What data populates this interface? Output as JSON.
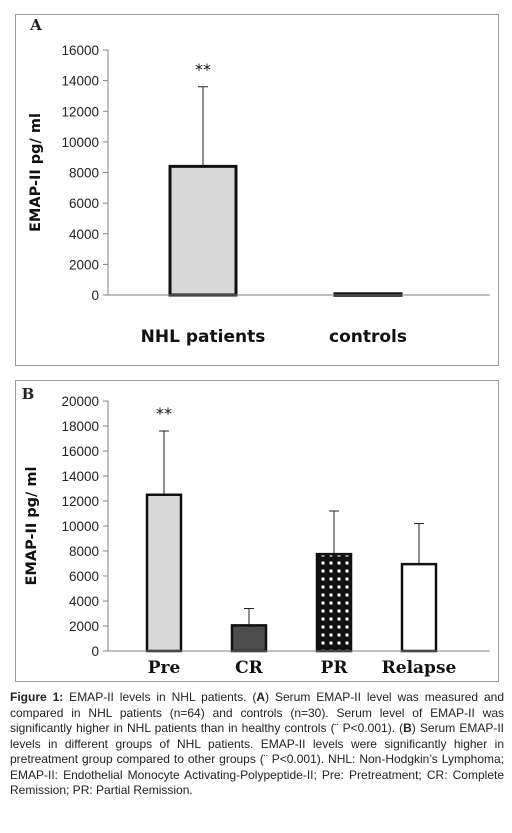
{
  "chart_data": [
    {
      "type": "bar",
      "panel_label": "A",
      "categories": [
        "NHL patients",
        "controls"
      ],
      "values": [
        8400,
        80
      ],
      "error_upper": [
        13600,
        null
      ],
      "annotations": [
        {
          "category": "NHL patients",
          "text": "**"
        }
      ],
      "ylabel": "EMAP-II pg/ ml",
      "ylim": [
        0,
        16000
      ],
      "yticks": [
        0,
        2000,
        4000,
        6000,
        8000,
        10000,
        12000,
        14000,
        16000
      ],
      "grid": false,
      "bar_fills": [
        "#d9d9d9",
        "#ffffff"
      ]
    },
    {
      "type": "bar",
      "panel_label": "B",
      "categories": [
        "Pre",
        "CR",
        "PR",
        "Relapse"
      ],
      "values": [
        12500,
        2050,
        7750,
        6950
      ],
      "error_upper": [
        17600,
        3400,
        11200,
        10200
      ],
      "annotations": [
        {
          "category": "Pre",
          "text": "**"
        }
      ],
      "ylabel": "EMAP-II pg/ ml",
      "ylim": [
        0,
        20000
      ],
      "yticks": [
        0,
        2000,
        4000,
        6000,
        8000,
        10000,
        12000,
        14000,
        16000,
        18000,
        20000
      ],
      "grid": false,
      "bar_fills": [
        "#d9d9d9",
        "#4d4d4d",
        "pattern-dots",
        "#ffffff"
      ]
    }
  ],
  "caption": {
    "label": "Figure 1:",
    "p1": " EMAP-II levels in NHL patients. (",
    "a": "A",
    "p2": ") Serum EMAP-II level was measured and compared in NHL patients (n=64) and controls (n=30). Serum level of EMAP-II was significantly higher in NHL patients than in healthy controls (¨ P<0.001). (",
    "b": "B",
    "p3": ") Serum EMAP-II levels in different groups of NHL patients. EMAP-II levels were significantly higher in pretreatment group compared to other groups (¨ P<0.001). NHL: Non-Hodgkin’s Lymphoma; EMAP-II: Endothelial Monocyte Activating-Polypeptide-II; Pre: Pretreatment; CR: Complete Remission; PR: Partial Remission."
  }
}
